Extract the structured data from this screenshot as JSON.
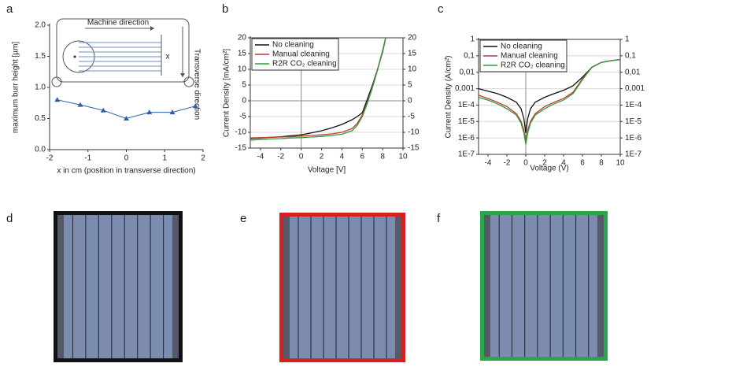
{
  "chart_data": [
    {
      "type": "line",
      "panel": "a",
      "x_label": "x in cm (position in transverse direction)",
      "y_label": "maximum burr height [µm]",
      "annotations": [
        "Machine direction",
        "Transverse direction",
        "x"
      ],
      "x": [
        -1.8,
        -1.2,
        -0.6,
        0,
        0.6,
        1.2,
        1.8
      ],
      "series": [
        {
          "name": "",
          "color": "#2f5eaa",
          "values": [
            0.8,
            0.72,
            0.63,
            0.5,
            0.6,
            0.6,
            0.7
          ]
        }
      ],
      "markers": true,
      "xlim": [
        -2,
        2
      ],
      "xticks": [
        -2,
        -1,
        0,
        1,
        2
      ],
      "ylim": [
        0,
        2
      ],
      "yticks": [
        {
          "value": 0,
          "label": "0.0"
        },
        {
          "value": 0.5,
          "label": "0.5"
        },
        {
          "value": 1,
          "label": "1.0"
        },
        {
          "value": 1.5,
          "label": "1.5"
        },
        {
          "value": 2,
          "label": "2.0"
        }
      ],
      "grid": false
    },
    {
      "type": "line",
      "panel": "b",
      "x_label": "Voltage [V]",
      "y_label": "Current Density [mA/cm²]",
      "x": [
        -5,
        -4,
        -3,
        -2,
        -1,
        0,
        1,
        2,
        3,
        4,
        5,
        5.5,
        6,
        6.5,
        7,
        7.5,
        8,
        8.3
      ],
      "series": [
        {
          "name": "No cleaning",
          "color": "#111111",
          "values": [
            -12,
            -11.8,
            -11.6,
            -11.4,
            -11.1,
            -10.8,
            -10.2,
            -9.5,
            -8.6,
            -7.5,
            -6,
            -5,
            -3.8,
            0.5,
            5,
            10,
            15.5,
            20
          ]
        },
        {
          "name": "Manual cleaning",
          "color": "#c0392b",
          "values": [
            -11.8,
            -11.7,
            -11.6,
            -11.5,
            -11.4,
            -11.2,
            -11,
            -10.8,
            -10.5,
            -10,
            -8.8,
            -7.2,
            -4.5,
            -0.5,
            4.5,
            10,
            16,
            20
          ]
        },
        {
          "name": "R2R CO₂ cleaning",
          "color": "#2e9a3a",
          "values": [
            -12.5,
            -12.3,
            -12.1,
            -12,
            -11.8,
            -11.7,
            -11.5,
            -11.3,
            -11,
            -10.6,
            -9.5,
            -7.8,
            -5,
            -0.8,
            4.2,
            9.8,
            15.8,
            20
          ]
        }
      ],
      "xlim": [
        -5,
        10
      ],
      "xticks": [
        -4,
        -2,
        0,
        2,
        4,
        6,
        8,
        10
      ],
      "ylim": [
        -15,
        20
      ],
      "yticks": [
        -15,
        -10,
        -5,
        0,
        5,
        10,
        15,
        20
      ],
      "y2lim": [
        -15,
        20
      ],
      "y2ticks": [
        -15,
        -10,
        -5,
        0,
        5,
        10,
        15,
        20
      ],
      "grid": true,
      "legend": "upper left"
    },
    {
      "type": "line",
      "panel": "c",
      "yscale": "log",
      "x_label": "Voltage (V)",
      "y_label": "Current Density (A/cm²)",
      "x": [
        -5,
        -4,
        -3,
        -2,
        -1,
        -0.5,
        -0.2,
        0,
        0.2,
        0.5,
        1,
        2,
        3,
        4,
        5,
        6,
        7,
        8,
        9,
        10
      ],
      "series": [
        {
          "name": "No cleaning",
          "color": "#111111",
          "values": [
            0.001,
            0.0007,
            0.0005,
            0.0003,
            0.00015,
            6e-05,
            1.5e-05,
            2e-06,
            1.5e-05,
            6e-05,
            0.00015,
            0.0003,
            0.0005,
            0.0008,
            0.0015,
            0.005,
            0.02,
            0.04,
            0.05,
            0.06
          ]
        },
        {
          "name": "Manual cleaning",
          "color": "#c0392b",
          "values": [
            0.0004,
            0.00025,
            0.00015,
            8e-05,
            3e-05,
            1e-05,
            3e-06,
            6e-07,
            3e-06,
            1e-05,
            3e-05,
            8e-05,
            0.00015,
            0.00025,
            0.0006,
            0.004,
            0.02,
            0.04,
            0.05,
            0.06
          ]
        },
        {
          "name": "R2R CO₂ cleaning",
          "color": "#2e9a3a",
          "values": [
            0.0003,
            0.0002,
            0.00012,
            6e-05,
            2.5e-05,
            8e-06,
            2e-06,
            4e-07,
            2e-06,
            8e-06,
            2.5e-05,
            6e-05,
            0.00012,
            0.0002,
            0.0005,
            0.0035,
            0.02,
            0.04,
            0.05,
            0.06
          ]
        }
      ],
      "xlim": [
        -5,
        10
      ],
      "xticks": [
        -4,
        -2,
        0,
        2,
        4,
        6,
        8,
        10
      ],
      "ylim": [
        1e-07,
        1
      ],
      "yticks": [
        {
          "value": 1e-07,
          "label": "1E-7"
        },
        {
          "value": 1e-06,
          "label": "1E-6"
        },
        {
          "value": 1e-05,
          "label": "1E-5"
        },
        {
          "value": 0.0001,
          "label": "1E-4"
        },
        {
          "value": 0.001,
          "label": "0,001"
        },
        {
          "value": 0.01,
          "label": "0,01"
        },
        {
          "value": 0.1,
          "label": "0,1"
        },
        1
      ],
      "y2lim": [
        1e-07,
        1
      ],
      "y2ticks": [
        {
          "value": 1e-07,
          "label": "1E-7"
        },
        {
          "value": 1e-06,
          "label": "1E-6"
        },
        {
          "value": 1e-05,
          "label": "1E-5"
        },
        {
          "value": 0.0001,
          "label": "1E-4"
        },
        {
          "value": 0.001,
          "label": "0,001"
        },
        {
          "value": 0.01,
          "label": "0,01"
        },
        {
          "value": 0.1,
          "label": "0,1"
        },
        1
      ],
      "grid": true,
      "legend": "upper left"
    }
  ],
  "images": [
    {
      "panel": "d",
      "border_color": "#111111"
    },
    {
      "panel": "e",
      "border_color": "#d42020"
    },
    {
      "panel": "f",
      "border_color": "#27a84a"
    }
  ]
}
